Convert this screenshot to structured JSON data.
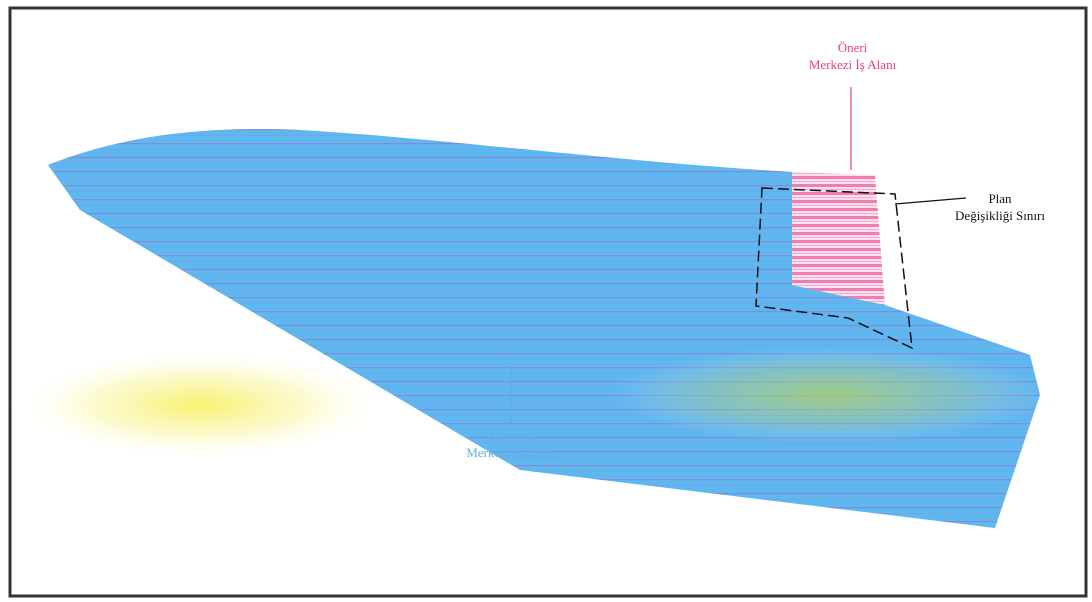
{
  "colors": {
    "existing_area": "#5cb8ef",
    "existing_label": "#5fb0e0",
    "proposed_area": "#f06aa6",
    "proposed_label": "#e2418a",
    "stripe": "#b060c0",
    "boundary_line": "#111111",
    "speckle": "#f2ea3a",
    "frame": "#333333"
  },
  "labels": {
    "proposed": {
      "line1": "Öneri",
      "line2": "Merkezi İş Alanı"
    },
    "plan_boundary": {
      "line1": "Plan",
      "line2": "Değişikliği Sınırı"
    },
    "existing": {
      "line1": "Mevcut",
      "line2": "Merkezi İş Alanı"
    }
  }
}
